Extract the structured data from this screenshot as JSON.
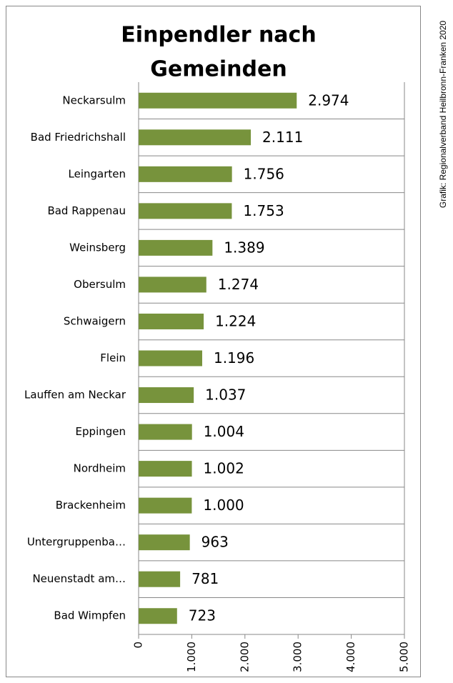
{
  "chart_data": {
    "type": "bar",
    "orientation": "horizontal",
    "title": "Einpendler nach Gemeinden",
    "title_lines": [
      "Einpendler nach",
      "Gemeinden"
    ],
    "credit": "Grafik: Regionalverband Heilbronn-Franken 2020",
    "categories": [
      "Neckarsulm",
      "Bad Friedrichshall",
      "Leingarten",
      "Bad Rappenau",
      "Weinsberg",
      "Obersulm",
      "Schwaigern",
      "Flein",
      "Lauffen am Neckar",
      "Eppingen",
      "Nordheim",
      "Brackenheim",
      "Untergruppenba…",
      "Neuenstadt am…",
      "Bad Wimpfen"
    ],
    "values": [
      2974,
      2111,
      1756,
      1753,
      1389,
      1274,
      1224,
      1196,
      1037,
      1004,
      1002,
      1000,
      963,
      781,
      723
    ],
    "value_labels": [
      "2.974",
      "2.111",
      "1.756",
      "1.753",
      "1.389",
      "1.274",
      "1.224",
      "1.196",
      "1.037",
      "1.004",
      "1.002",
      "1.000",
      "963",
      "781",
      "723"
    ],
    "color": "#77933c",
    "xlim": [
      0,
      5000
    ],
    "xticks": [
      0,
      {
        "value": 1000,
        "label": "1.000"
      },
      {
        "value": 2000,
        "label": "2.000"
      },
      {
        "value": 3000,
        "label": "3.000"
      },
      {
        "value": 4000,
        "label": "4.000"
      },
      {
        "value": 5000,
        "label": "5.000"
      }
    ]
  }
}
